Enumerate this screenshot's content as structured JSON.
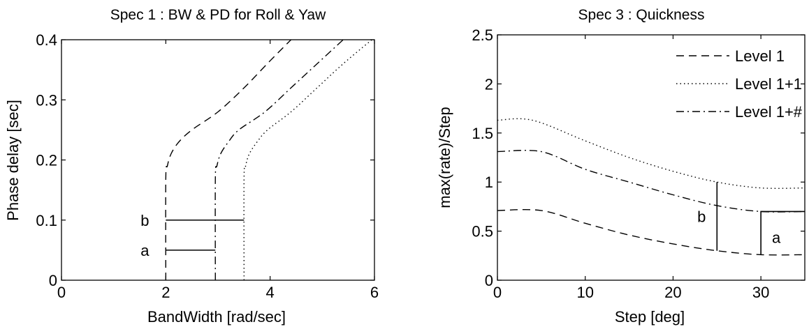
{
  "chart_data": [
    {
      "type": "line",
      "title": "Spec 1 : BW & PD for Roll & Yaw",
      "xlabel": "BandWidth [rad/sec]",
      "ylabel": "Phase delay [sec]",
      "xlim": [
        0,
        6
      ],
      "ylim": [
        0,
        0.4
      ],
      "xticks": [
        0,
        2,
        4,
        6
      ],
      "yticks": [
        0,
        0.1,
        0.2,
        0.3,
        0.4
      ],
      "xtick_labels": [
        "0",
        "2",
        "4",
        "6"
      ],
      "ytick_labels": [
        "0",
        "0.1",
        "0.2",
        "0.3",
        "0.4"
      ],
      "grid": false,
      "series": [
        {
          "style": "dashed",
          "x": [
            2,
            2,
            2.03,
            2.1,
            2.25,
            2.5,
            3.0,
            3.5,
            4.0,
            4.4
          ],
          "y": [
            0,
            0.17,
            0.19,
            0.21,
            0.23,
            0.25,
            0.28,
            0.32,
            0.365,
            0.4
          ]
        },
        {
          "style": "dashdot",
          "x": [
            2.95,
            2.95,
            2.98,
            3.05,
            3.2,
            3.4,
            3.9,
            4.4,
            4.9,
            5.4
          ],
          "y": [
            0,
            0.17,
            0.19,
            0.21,
            0.23,
            0.25,
            0.28,
            0.32,
            0.36,
            0.4
          ]
        },
        {
          "style": "dotted",
          "x": [
            3.5,
            3.5,
            3.53,
            3.6,
            3.75,
            3.95,
            4.4,
            4.9,
            5.4,
            5.95
          ],
          "y": [
            0,
            0.17,
            0.19,
            0.21,
            0.23,
            0.25,
            0.28,
            0.32,
            0.36,
            0.4
          ]
        }
      ],
      "segments": [
        {
          "label": "b",
          "x": [
            2,
            3.5
          ],
          "y": [
            0.1,
            0.1
          ]
        },
        {
          "label": "a",
          "x": [
            2,
            2.95
          ],
          "y": [
            0.05,
            0.05
          ]
        }
      ]
    },
    {
      "type": "line",
      "title": "Spec 3 : Quickness",
      "xlabel": "Step [deg]",
      "ylabel": "max(rate)/Step",
      "xlim": [
        0,
        35
      ],
      "ylim": [
        0,
        2.5
      ],
      "xticks": [
        0,
        10,
        20,
        30
      ],
      "yticks": [
        0,
        0.5,
        1,
        1.5,
        2,
        2.5
      ],
      "xtick_labels": [
        "0",
        "10",
        "20",
        "30"
      ],
      "ytick_labels": [
        "0",
        "0.5",
        "1",
        "1.5",
        "2",
        "2.5"
      ],
      "grid": false,
      "legend_position": "top-right",
      "series": [
        {
          "name": "Level 1",
          "style": "dashed",
          "x": [
            0,
            5,
            10,
            15,
            20,
            25,
            30,
            35
          ],
          "y": [
            0.71,
            0.71,
            0.58,
            0.46,
            0.37,
            0.3,
            0.26,
            0.26
          ]
        },
        {
          "name": "Level 1+1",
          "style": "dotted",
          "x": [
            0,
            4,
            10,
            15,
            20,
            25,
            30,
            35
          ],
          "y": [
            1.63,
            1.63,
            1.42,
            1.25,
            1.11,
            1.0,
            0.94,
            0.94
          ]
        },
        {
          "name": "Level 1+#",
          "style": "dashdot",
          "x": [
            0,
            5,
            10,
            15,
            20,
            25,
            30,
            35
          ],
          "y": [
            1.31,
            1.31,
            1.13,
            1.0,
            0.87,
            0.76,
            0.7,
            0.7
          ]
        }
      ],
      "segments": [
        {
          "label": "b",
          "x": [
            25,
            25
          ],
          "y": [
            0.3,
            1.0
          ]
        },
        {
          "label": "a",
          "x": [
            30,
            30,
            35
          ],
          "y": [
            0.26,
            0.7,
            0.7
          ]
        }
      ]
    }
  ]
}
